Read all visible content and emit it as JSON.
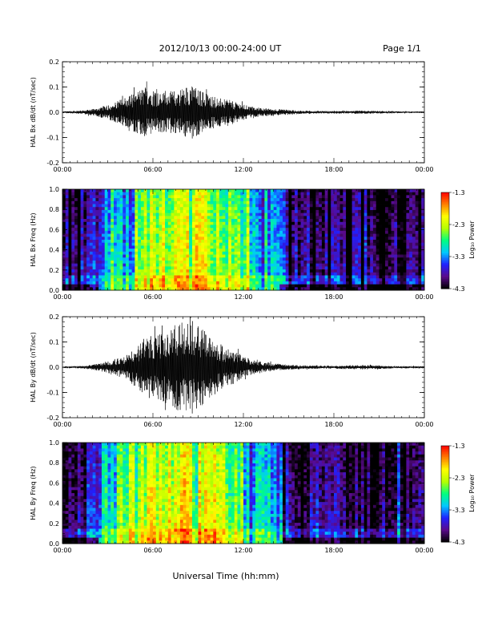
{
  "header": {
    "title": "2012/10/13  00:00-24:00 UT",
    "page": "Page 1/1"
  },
  "footer": {
    "xlabel": "Universal Time (hh:mm)"
  },
  "colorscale": {
    "label": "Log₁₀ Power",
    "ticks": [
      "-1.3",
      "-2.3",
      "-3.3",
      "-4.3"
    ],
    "range": [
      -4.3,
      -1.3
    ],
    "colors": [
      "#000000",
      "#5a0a8c",
      "#2020ff",
      "#00c8ff",
      "#00ff80",
      "#b4ff00",
      "#ffff00",
      "#ff8000",
      "#ff0000"
    ]
  },
  "chart_data": [
    {
      "type": "line",
      "ylabel": "HAL Bx dB/dt (nT/sec)",
      "xlim": [
        "00:00",
        "24:00"
      ],
      "ylim": [
        -0.2,
        0.2
      ],
      "xticks": [
        "00:00",
        "06:00",
        "12:00",
        "18:00",
        "00:00"
      ],
      "yticks": [
        "0.2",
        "0.1",
        "0.0",
        "-0.1",
        "-0.2"
      ],
      "envelope": {
        "x_hours": [
          0,
          1.5,
          2.5,
          3.5,
          4.5,
          5.5,
          6.5,
          7.5,
          8.5,
          9.5,
          10.5,
          11.5,
          12.5,
          13.5,
          14.5,
          16,
          18,
          20,
          22,
          24
        ],
        "amplitude": [
          0.003,
          0.008,
          0.02,
          0.04,
          0.07,
          0.1,
          0.08,
          0.085,
          0.11,
          0.075,
          0.055,
          0.04,
          0.022,
          0.015,
          0.012,
          0.006,
          0.005,
          0.006,
          0.004,
          0.003
        ]
      }
    },
    {
      "type": "heatmap",
      "ylabel": "HAL Bx Freq (Hz)",
      "xlim": [
        "00:00",
        "24:00"
      ],
      "ylim": [
        0.0,
        1.0
      ],
      "xticks": [
        "00:00",
        "06:00",
        "12:00",
        "18:00",
        "00:00"
      ],
      "yticks": [
        "1.0",
        "0.8",
        "0.6",
        "0.4",
        "0.2",
        "0.0"
      ],
      "zlabel": "Log₁₀ Power",
      "zlim": [
        -4.3,
        -1.3
      ],
      "activity": {
        "x_hours": [
          0,
          1,
          2,
          2.5,
          3,
          4,
          5,
          6,
          7,
          8,
          9,
          10,
          11,
          12,
          13,
          14,
          15,
          16,
          17,
          18,
          20,
          22,
          24
        ],
        "level": [
          0.12,
          0.15,
          0.2,
          0.35,
          0.45,
          0.55,
          0.62,
          0.66,
          0.68,
          0.7,
          0.72,
          0.68,
          0.6,
          0.52,
          0.45,
          0.38,
          0.2,
          0.15,
          0.14,
          0.13,
          0.12,
          0.1,
          0.1
        ]
      }
    },
    {
      "type": "line",
      "ylabel": "HAL By dB/dt (nT/sec)",
      "xlim": [
        "00:00",
        "24:00"
      ],
      "ylim": [
        -0.2,
        0.2
      ],
      "xticks": [
        "00:00",
        "06:00",
        "12:00",
        "18:00",
        "00:00"
      ],
      "yticks": [
        "0.2",
        "0.1",
        "0.0",
        "-0.1",
        "-0.2"
      ],
      "envelope": {
        "x_hours": [
          0,
          1.5,
          2.5,
          3.5,
          4.5,
          5.5,
          6.5,
          7.5,
          8.5,
          9.5,
          10.5,
          11.5,
          12.5,
          13.5,
          14.5,
          16,
          18,
          20,
          22,
          24
        ],
        "amplitude": [
          0.003,
          0.006,
          0.015,
          0.03,
          0.06,
          0.12,
          0.13,
          0.17,
          0.19,
          0.14,
          0.09,
          0.06,
          0.03,
          0.02,
          0.012,
          0.007,
          0.006,
          0.009,
          0.005,
          0.004
        ]
      }
    },
    {
      "type": "heatmap",
      "ylabel": "HAL By Freq (Hz)",
      "xlim": [
        "00:00",
        "24:00"
      ],
      "ylim": [
        0.0,
        1.0
      ],
      "xticks": [
        "00:00",
        "06:00",
        "12:00",
        "18:00",
        "00:00"
      ],
      "yticks": [
        "1.0",
        "0.8",
        "0.6",
        "0.4",
        "0.2",
        "0.0"
      ],
      "zlabel": "Log₁₀ Power",
      "zlim": [
        -4.3,
        -1.3
      ],
      "activity": {
        "x_hours": [
          0,
          1,
          2,
          2.5,
          3,
          4,
          5,
          6,
          7,
          8,
          9,
          10,
          11,
          12,
          13,
          14,
          15,
          16,
          17,
          18,
          20,
          22,
          24
        ],
        "level": [
          0.12,
          0.14,
          0.2,
          0.35,
          0.48,
          0.6,
          0.68,
          0.72,
          0.74,
          0.76,
          0.78,
          0.72,
          0.62,
          0.52,
          0.45,
          0.38,
          0.22,
          0.16,
          0.14,
          0.13,
          0.12,
          0.1,
          0.1
        ]
      }
    }
  ]
}
